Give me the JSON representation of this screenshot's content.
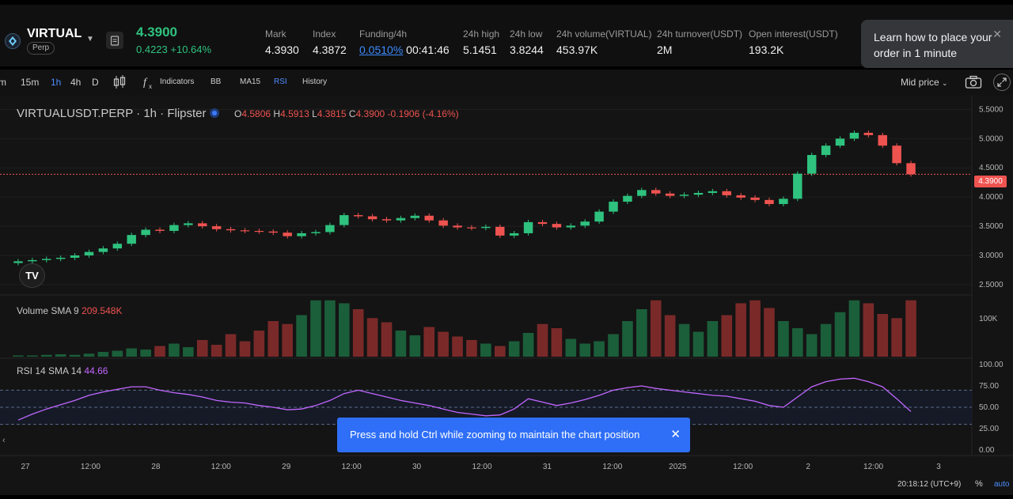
{
  "header": {
    "symbol": "VIRTUAL",
    "contract_type": "Perp",
    "last_price": "4.3900",
    "change_abs": "0.4223",
    "change_pct": "+10.64%",
    "stats": [
      {
        "label": "Mark",
        "value": "4.3930"
      },
      {
        "label": "Index",
        "value": "4.3872"
      },
      {
        "label": "Funding/4h",
        "value": "0.0510%",
        "countdown": "00:41:46"
      },
      {
        "label": "24h high",
        "value": "5.1451"
      },
      {
        "label": "24h low",
        "value": "3.8244"
      },
      {
        "label": "24h volume(VIRTUAL)",
        "value": "453.97K"
      },
      {
        "label": "24h turnover(USDT)",
        "value": "2M"
      },
      {
        "label": "Open interest(USDT)",
        "value": "193.2K"
      }
    ],
    "promo_text": "Learn how to place your order in 1 minute",
    "colors": {
      "up": "#2ec27e",
      "down": "#ef5350",
      "accent": "#3d8bff"
    }
  },
  "toolbar": {
    "intervals": [
      "m",
      "15m",
      "1h",
      "4h",
      "D"
    ],
    "active_interval": "1h",
    "indicators_label": "Indicators",
    "studies": [
      "BB",
      "MA15",
      "RSI"
    ],
    "active_study": "RSI",
    "history_label": "History",
    "price_mode": "Mid price"
  },
  "chart": {
    "title": "VIRTUALUSDT.PERP · 1h · Flipster",
    "ohlc": {
      "o": "4.5806",
      "h": "4.5913",
      "l": "4.3815",
      "c": "4.3900",
      "chg": "-0.1906 (-4.16%)"
    },
    "current_price_tag": "4.3900",
    "volume_label": "Volume SMA 9",
    "volume_value": "209.548K",
    "rsi_label": "RSI 14 SMA 14",
    "rsi_value": "44.66",
    "time_display": "20:18:12 (UTC+9)",
    "pct_label": "%",
    "auto_label": "auto",
    "tv_logo": "TV"
  },
  "chart_data": [
    {
      "type": "line",
      "title": "VIRTUALUSDT.PERP · 1h · Flipster",
      "x_ticks": [
        "27",
        "12:00",
        "28",
        "12:00",
        "29",
        "12:00",
        "30",
        "12:00",
        "31",
        "12:00",
        "2025",
        "12:00",
        "2",
        "12:00",
        "3"
      ],
      "y_ticks": [
        "5.5000",
        "5.0000",
        "4.5000",
        "4.0000",
        "3.5000",
        "3.0000",
        "2.5000"
      ],
      "ylim": [
        2.35,
        5.6
      ],
      "series": [
        {
          "values": [
            2.9,
            2.92,
            2.94,
            2.96,
            3.0,
            3.06,
            3.12,
            3.2,
            3.35,
            3.44,
            3.42,
            3.52,
            3.55,
            3.5,
            3.45,
            3.43,
            3.42,
            3.41,
            3.39,
            3.33,
            3.38,
            3.4,
            3.52,
            3.69,
            3.67,
            3.62,
            3.6,
            3.64,
            3.68,
            3.6,
            3.51,
            3.48,
            3.47,
            3.49,
            3.34,
            3.38,
            3.57,
            3.54,
            3.48,
            3.51,
            3.58,
            3.75,
            3.92,
            4.02,
            4.12,
            4.06,
            4.02,
            4.04,
            4.07,
            4.1,
            4.03,
            3.99,
            3.95,
            3.88,
            3.97,
            4.4,
            4.72,
            4.88,
            5.0,
            5.1,
            5.06,
            4.88,
            4.58,
            4.39
          ]
        }
      ]
    },
    {
      "type": "bar",
      "title": "Volume SMA 9",
      "y_ticks": [
        "100K"
      ],
      "values": [
        2,
        2,
        3,
        4,
        3,
        5,
        8,
        10,
        14,
        12,
        18,
        22,
        16,
        28,
        20,
        38,
        26,
        44,
        60,
        55,
        70,
        95,
        95,
        90,
        80,
        65,
        58,
        44,
        36,
        50,
        42,
        34,
        28,
        22,
        18,
        26,
        40,
        55,
        48,
        30,
        22,
        26,
        38,
        60,
        80,
        95,
        70,
        55,
        42,
        60,
        70,
        90,
        95,
        82,
        60,
        48,
        38,
        55,
        75,
        95,
        90,
        72,
        65,
        95
      ],
      "series_colors": [
        "#1b5e3a",
        "#7a2929"
      ]
    },
    {
      "type": "line",
      "title": "RSI 14 SMA 14",
      "y_ticks": [
        "100.00",
        "75.00",
        "50.00",
        "25.00",
        "0.00"
      ],
      "ylim": [
        0,
        100
      ],
      "reference_lines": [
        70,
        50,
        30
      ],
      "values": [
        35,
        42,
        48,
        53,
        58,
        64,
        68,
        71,
        74,
        74,
        70,
        67,
        65,
        62,
        58,
        56,
        55,
        52,
        50,
        47,
        48,
        52,
        58,
        66,
        70,
        66,
        62,
        58,
        55,
        52,
        48,
        44,
        42,
        40,
        41,
        48,
        60,
        56,
        52,
        55,
        59,
        64,
        70,
        73,
        75,
        72,
        70,
        68,
        66,
        64,
        63,
        60,
        57,
        52,
        50,
        62,
        74,
        80,
        83,
        84,
        80,
        74,
        60,
        45
      ],
      "series_color": "#c266ff"
    }
  ],
  "toast": {
    "text": "Press and hold Ctrl while zooming to maintain the chart position"
  }
}
